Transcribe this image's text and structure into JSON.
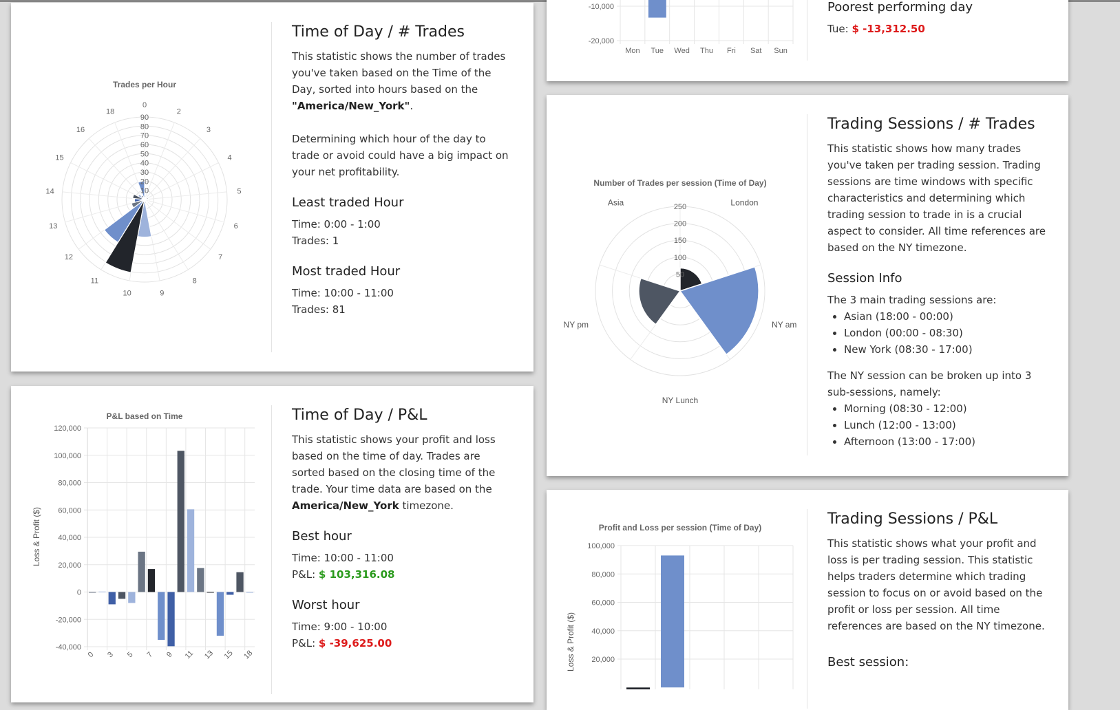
{
  "colors": {
    "navy": "#3f5fa6",
    "slate": "#4e5663",
    "light": "#9eb3dc",
    "dark": "#22252b",
    "grey": "#6b7584",
    "mid": "#6f8fcb",
    "positive": "#2a9a1c",
    "negative": "#dd1a1a"
  },
  "time_trades": {
    "title": "Time of Day / # Trades",
    "desc1": "This statistic shows the number of trades you've taken based on the Time of the Day, sorted into hours based on the ",
    "timezone": "\"America/New_York\"",
    "desc1_end": ".",
    "desc2": "Determining which hour of the day to trade or avoid could have a big impact on your net profitability.",
    "least_heading": "Least traded Hour",
    "least_time": "Time: 0:00 - 1:00",
    "least_trades": "Trades: 1",
    "most_heading": "Most traded Hour",
    "most_time": "Time: 10:00 - 11:00",
    "most_trades": "Trades: 81"
  },
  "time_pnl": {
    "title": "Time of Day / P&L",
    "desc": "This statistic shows your profit and loss based on the time of day. Trades are sorted based on the closing time of the trade. Your time data are based on the ",
    "timezone": "America/New_York",
    "desc_end": "timezone.",
    "best_heading": "Best hour",
    "best_time": "Time: 10:00 - 11:00",
    "best_label": "P&L: ",
    "best_value": "$ 103,316.08",
    "worst_heading": "Worst hour",
    "worst_time": "Time: 9:00 - 10:00",
    "worst_label": "P&L: ",
    "worst_value": "$ -39,625.00"
  },
  "weekday": {
    "poorest_heading": "Poorest performing day",
    "poorest_label": "Tue: ",
    "poorest_value": "$ -13,312.50"
  },
  "sessions_trades": {
    "title": "Trading Sessions / # Trades",
    "desc": "This statistic shows how many trades you've taken per trading session. Trading sessions are time windows with specific characteristics and determining which trading session to trade in is a crucial aspect to consider. All time references are based on the NY timezone.",
    "info_heading": "Session Info",
    "info_intro": "The 3 main trading sessions are:",
    "main_sessions": [
      "Asian (18:00 - 00:00)",
      "London (00:00 - 08:30)",
      "New York (08:30 - 17:00)"
    ],
    "sub_intro": "The NY session can be broken up into 3 sub-sessions, namely:",
    "sub_sessions": [
      "Morning (08:30 - 12:00)",
      "Lunch (12:00 - 13:00)",
      "Afternoon (13:00 - 17:00)"
    ]
  },
  "sessions_pnl": {
    "title": "Trading Sessions / P&L",
    "desc": "This statistic shows what your profit and loss is per trading session. This statistic helps traders determine which trading session to focus on or avoid based on the profit or loss per session. All time references are based on the NY timezone.",
    "best_heading": "Best session:"
  },
  "chart_data": [
    {
      "id": "trades_per_hour",
      "type": "polar-area",
      "title": "Trades per Hour",
      "hour_labels": [
        "0",
        "2",
        "3",
        "4",
        "5",
        "6",
        "7",
        "8",
        "9",
        "10",
        "11",
        "12",
        "13",
        "14",
        "15",
        "16",
        "18"
      ],
      "values": [
        1,
        3,
        4,
        4,
        3,
        4,
        3,
        4,
        41,
        81,
        55,
        15,
        11,
        13,
        8,
        5,
        20
      ],
      "radial_ticks": [
        "10",
        "20",
        "30",
        "40",
        "50",
        "60",
        "70",
        "80",
        "90"
      ],
      "rmax": 90
    },
    {
      "id": "pnl_based_on_time",
      "type": "bar",
      "title": "P&L based on Time",
      "ylabel": "Loss & Profit ($)",
      "categories": [
        "0",
        "2",
        "3",
        "4",
        "5",
        "6",
        "7",
        "8",
        "9",
        "10",
        "11",
        "12",
        "13",
        "14",
        "15",
        "16",
        "18"
      ],
      "x_tick_labels": [
        "0",
        "3",
        "5",
        "7",
        "9",
        "11",
        "13",
        "15",
        "18"
      ],
      "values": [
        -500,
        300,
        -9000,
        -5000,
        -8000,
        29500,
        16800,
        -35000,
        -39625,
        103316.08,
        60500,
        17500,
        -500,
        -32000,
        -2000,
        14500,
        -500
      ],
      "y_ticks": [
        "120,000",
        "100,000",
        "80,000",
        "60,000",
        "40,000",
        "20,000",
        "0",
        "-20,000",
        "-40,000"
      ],
      "ylim": [
        -40000,
        120000
      ]
    },
    {
      "id": "pnl_per_weekday",
      "type": "bar",
      "categories": [
        "Mon",
        "Tue",
        "Wed",
        "Thu",
        "Fri",
        "Sat",
        "Sun"
      ],
      "values": [
        0,
        -13312.5,
        0,
        0,
        0,
        0,
        0
      ],
      "y_ticks": [
        "-10,000",
        "-20,000"
      ]
    },
    {
      "id": "trades_per_session",
      "type": "polar-area",
      "title": "Number of Trades per session (Time of Day)",
      "categories": [
        "London",
        "NY am",
        "NY Lunch",
        "NY pm",
        "Asia"
      ],
      "values": [
        68,
        232,
        0,
        122,
        0
      ],
      "radial_ticks": [
        "50",
        "100",
        "150",
        "200",
        "250"
      ],
      "rmax": 250
    },
    {
      "id": "pnl_per_session",
      "type": "bar",
      "title": "Profit and Loss per session (Time of Day)",
      "ylabel": "Loss & Profit ($)",
      "categories": [
        "London",
        "NY am",
        "NY Lunch",
        "NY pm",
        "Asia"
      ],
      "values": [
        -2000,
        93000,
        0,
        0,
        0
      ],
      "y_ticks": [
        "100,000",
        "80,000",
        "60,000",
        "40,000",
        "20,000"
      ]
    }
  ]
}
